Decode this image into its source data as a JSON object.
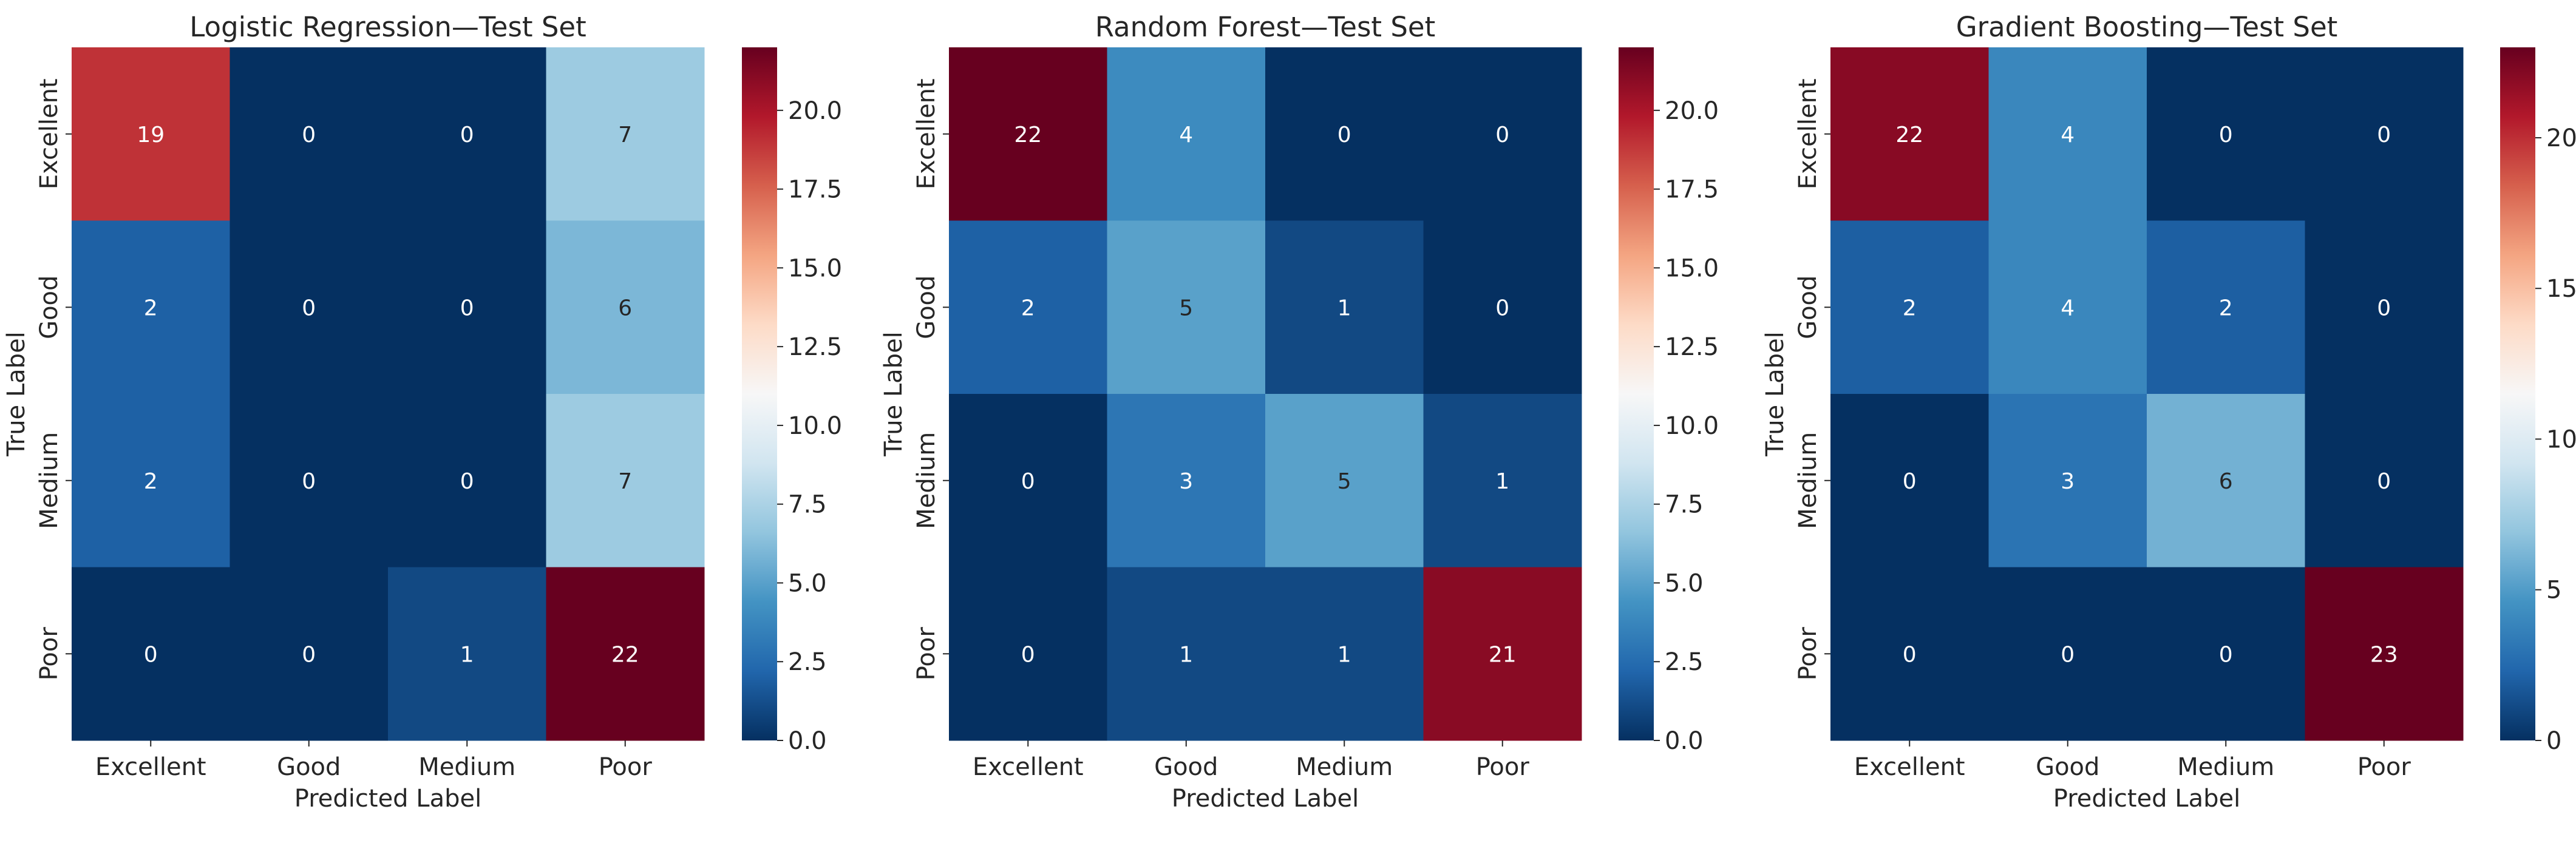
{
  "chart_data": [
    {
      "type": "heatmap",
      "title": "Logistic Regression—Test Set",
      "xlabel": "Predicted Label",
      "ylabel": "True Label",
      "x_categories": [
        "Excellent",
        "Good",
        "Medium",
        "Poor"
      ],
      "y_categories": [
        "Excellent",
        "Good",
        "Medium",
        "Poor"
      ],
      "values": [
        [
          19,
          0,
          0,
          7
        ],
        [
          2,
          0,
          0,
          6
        ],
        [
          2,
          0,
          0,
          7
        ],
        [
          0,
          0,
          1,
          22
        ]
      ],
      "colorbar": {
        "min": 0,
        "max": 22,
        "ticks": [
          0,
          2.5,
          5,
          7.5,
          10,
          12.5,
          15,
          17.5,
          20
        ],
        "tick_labels": [
          "0.0",
          "2.5",
          "5.0",
          "7.5",
          "10.0",
          "12.5",
          "15.0",
          "17.5",
          "20.0"
        ]
      },
      "colormap": "RdBu_r"
    },
    {
      "type": "heatmap",
      "title": "Random Forest—Test Set",
      "xlabel": "Predicted Label",
      "ylabel": "True Label",
      "x_categories": [
        "Excellent",
        "Good",
        "Medium",
        "Poor"
      ],
      "y_categories": [
        "Excellent",
        "Good",
        "Medium",
        "Poor"
      ],
      "values": [
        [
          22,
          4,
          0,
          0
        ],
        [
          2,
          5,
          1,
          0
        ],
        [
          0,
          3,
          5,
          1
        ],
        [
          0,
          1,
          1,
          21
        ]
      ],
      "colorbar": {
        "min": 0,
        "max": 22,
        "ticks": [
          0,
          2.5,
          5,
          7.5,
          10,
          12.5,
          15,
          17.5,
          20
        ],
        "tick_labels": [
          "0.0",
          "2.5",
          "5.0",
          "7.5",
          "10.0",
          "12.5",
          "15.0",
          "17.5",
          "20.0"
        ]
      },
      "colormap": "RdBu_r"
    },
    {
      "type": "heatmap",
      "title": "Gradient Boosting—Test Set",
      "xlabel": "Predicted Label",
      "ylabel": "True Label",
      "x_categories": [
        "Excellent",
        "Good",
        "Medium",
        "Poor"
      ],
      "y_categories": [
        "Excellent",
        "Good",
        "Medium",
        "Poor"
      ],
      "values": [
        [
          22,
          4,
          0,
          0
        ],
        [
          2,
          4,
          2,
          0
        ],
        [
          0,
          3,
          6,
          0
        ],
        [
          0,
          0,
          0,
          23
        ]
      ],
      "colorbar": {
        "min": 0,
        "max": 23,
        "ticks": [
          0,
          5,
          10,
          15,
          20
        ],
        "tick_labels": [
          "0",
          "5",
          "10",
          "15",
          "20"
        ]
      },
      "colormap": "RdBu_r"
    }
  ]
}
